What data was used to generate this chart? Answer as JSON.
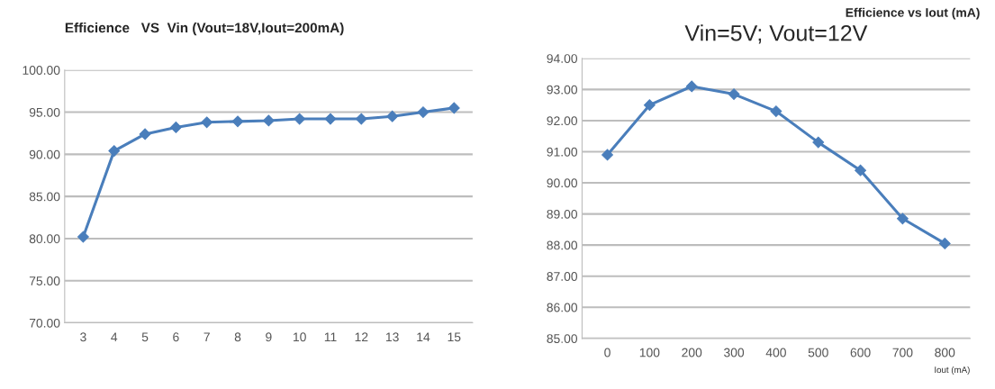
{
  "chart_data": [
    {
      "type": "line",
      "title": "Efficience   VS  Vin (Vout=18V,Iout=200mA)",
      "categories": [
        "3",
        "4",
        "5",
        "6",
        "7",
        "8",
        "9",
        "10",
        "11",
        "12",
        "13",
        "14",
        "15"
      ],
      "series": [
        {
          "color": "#4a7ebb",
          "values": [
            80.2,
            90.4,
            92.4,
            93.2,
            93.8,
            93.9,
            94.0,
            94.2,
            94.2,
            94.2,
            94.5,
            95.0,
            95.5
          ]
        }
      ],
      "ylim": [
        70,
        100
      ],
      "yticks": [
        {
          "value": 70,
          "label": "70.00"
        },
        {
          "value": 75,
          "label": "75.00"
        },
        {
          "value": 80,
          "label": "80.00"
        },
        {
          "value": 85,
          "label": "85.00"
        },
        {
          "value": 90,
          "label": "90.00"
        },
        {
          "value": 95,
          "label": "95.00"
        },
        {
          "value": 100,
          "label": "100.00"
        }
      ],
      "grid": "y",
      "marker": "diamond",
      "line_style": "solid"
    },
    {
      "type": "line",
      "title": "Vin=5V; Vout=12V",
      "xlabel": "Iout (mA)",
      "annotations": [
        "Efficience vs Iout (mA)"
      ],
      "categories": [
        "0",
        "100",
        "200",
        "300",
        "400",
        "500",
        "600",
        "700",
        "800"
      ],
      "series": [
        {
          "color": "#4a7ebb",
          "values": [
            90.9,
            92.5,
            93.1,
            92.85,
            92.3,
            91.3,
            90.4,
            88.85,
            88.05
          ]
        }
      ],
      "ylim": [
        85,
        94
      ],
      "yticks": [
        {
          "value": 85,
          "label": "85.00"
        },
        {
          "value": 86,
          "label": "86.00"
        },
        {
          "value": 87,
          "label": "87.00"
        },
        {
          "value": 88,
          "label": "88.00"
        },
        {
          "value": 89,
          "label": "89.00"
        },
        {
          "value": 90,
          "label": "90.00"
        },
        {
          "value": 91,
          "label": "91.00"
        },
        {
          "value": 92,
          "label": "92.00"
        },
        {
          "value": 93,
          "label": "93.00"
        },
        {
          "value": 94,
          "label": "94.00"
        }
      ],
      "grid": "y",
      "marker": "diamond",
      "line_style": "solid"
    }
  ]
}
